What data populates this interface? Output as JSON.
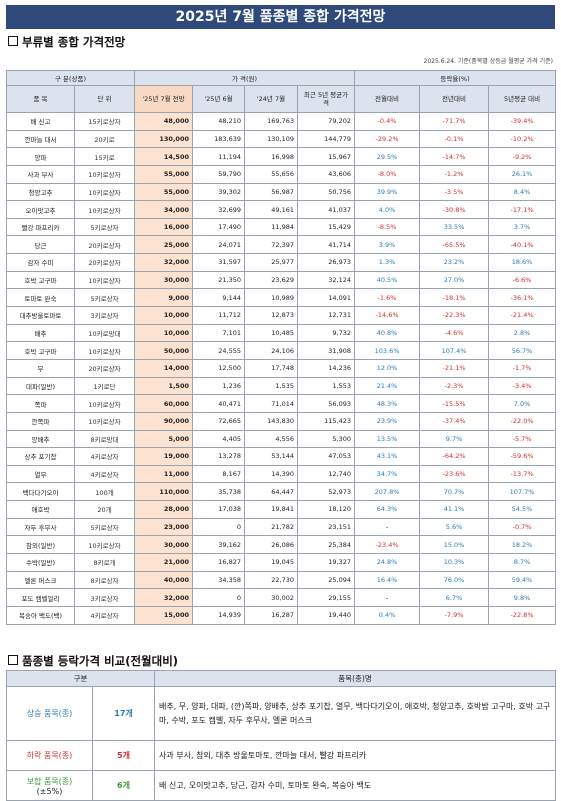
{
  "title": "2025년 7월 품종별 종합 가격전망",
  "section1_title": "부류별 종합 가격전망",
  "note": "2025.6.24. 기준(품목별 상등급 월평균 가격 기준)",
  "headers": {
    "group_item": "구 분(상품)",
    "group_price": "가 격(원)",
    "group_change": "등락율(%)",
    "item": "품 목",
    "unit": "단 위",
    "forecast": "'25년 7월 전망",
    "jun25": "'25년 6월",
    "jul24": "'24년 7월",
    "avg5": "최근 5년 평균가격",
    "mom": "전월대비",
    "yoy": "전년대비",
    "avg5_cmp": "5년평균 대비"
  },
  "rows": [
    {
      "item": "배 신고",
      "unit": "15키로상자",
      "forecast": "48,000",
      "jun": "48,210",
      "jul24": "169,763",
      "avg5": "79,202",
      "mom": "-0.4%",
      "yoy": "-71.7%",
      "avg": "-39.4%"
    },
    {
      "item": "깐마늘 대서",
      "unit": "20키로",
      "forecast": "130,000",
      "jun": "183,639",
      "jul24": "130,109",
      "avg5": "144,779",
      "mom": "-29.2%",
      "yoy": "-0.1%",
      "avg": "-10.2%"
    },
    {
      "item": "양파",
      "unit": "15키로",
      "forecast": "14,500",
      "jun": "11,194",
      "jul24": "16,998",
      "avg5": "15,967",
      "mom": "29.5%",
      "yoy": "-14.7%",
      "avg": "-9.2%"
    },
    {
      "item": "사과 부사",
      "unit": "10키로상자",
      "forecast": "55,000",
      "jun": "59,790",
      "jul24": "55,656",
      "avg5": "43,606",
      "mom": "-8.0%",
      "yoy": "-1.2%",
      "avg": "26.1%"
    },
    {
      "item": "청양고추",
      "unit": "10키로상자",
      "forecast": "55,000",
      "jun": "39,302",
      "jul24": "56,987",
      "avg5": "50,756",
      "mom": "39.9%",
      "yoy": "-3.5%",
      "avg": "8.4%"
    },
    {
      "item": "오이맛고추",
      "unit": "10키로상자",
      "forecast": "34,000",
      "jun": "32,699",
      "jul24": "49,161",
      "avg5": "41,037",
      "mom": "4.0%",
      "yoy": "-30.8%",
      "avg": "-17.1%"
    },
    {
      "item": "빨강 파프리카",
      "unit": "5키로상자",
      "forecast": "16,000",
      "jun": "17,490",
      "jul24": "11,984",
      "avg5": "15,429",
      "mom": "-8.5%",
      "yoy": "33.5%",
      "avg": "3.7%"
    },
    {
      "item": "당근",
      "unit": "20키로상자",
      "forecast": "25,000",
      "jun": "24,071",
      "jul24": "72,397",
      "avg5": "41,714",
      "mom": "3.9%",
      "yoy": "-65.5%",
      "avg": "-40.1%"
    },
    {
      "item": "감자 수미",
      "unit": "20키로상자",
      "forecast": "32,000",
      "jun": "31,597",
      "jul24": "25,977",
      "avg5": "26,973",
      "mom": "1.3%",
      "yoy": "23.2%",
      "avg": "18.6%"
    },
    {
      "item": "호박 고구마",
      "unit": "10키로상자",
      "forecast": "30,000",
      "jun": "21,350",
      "jul24": "23,629",
      "avg5": "32,124",
      "mom": "40.5%",
      "yoy": "27.0%",
      "avg": "-6.6%"
    },
    {
      "item": "토마토 완숙",
      "unit": "5키로상자",
      "forecast": "9,000",
      "jun": "9,144",
      "jul24": "10,989",
      "avg5": "14,091",
      "mom": "-1.6%",
      "yoy": "-18.1%",
      "avg": "-36.1%"
    },
    {
      "item": "대추방울토마토",
      "unit": "3키로상자",
      "forecast": "10,000",
      "jun": "11,712",
      "jul24": "12,873",
      "avg5": "12,731",
      "mom": "-14.6%",
      "yoy": "-22.3%",
      "avg": "-21.4%"
    },
    {
      "item": "배추",
      "unit": "10키로망대",
      "forecast": "10,000",
      "jun": "7,101",
      "jul24": "10,485",
      "avg5": "9,732",
      "mom": "40.8%",
      "yoy": "-4.6%",
      "avg": "2.8%"
    },
    {
      "item": "호박 고구마",
      "unit": "10키로상자",
      "forecast": "50,000",
      "jun": "24,555",
      "jul24": "24,106",
      "avg5": "31,908",
      "mom": "103.6%",
      "yoy": "107.4%",
      "avg": "56.7%"
    },
    {
      "item": "무",
      "unit": "20키로상자",
      "forecast": "14,000",
      "jun": "12,500",
      "jul24": "17,748",
      "avg5": "14,236",
      "mom": "12.0%",
      "yoy": "-21.1%",
      "avg": "-1.7%"
    },
    {
      "item": "대파(일반)",
      "unit": "1키로단",
      "forecast": "1,500",
      "jun": "1,236",
      "jul24": "1,535",
      "avg5": "1,553",
      "mom": "21.4%",
      "yoy": "-2.3%",
      "avg": "-3.4%"
    },
    {
      "item": "쪽파",
      "unit": "10키로상자",
      "forecast": "60,000",
      "jun": "40,471",
      "jul24": "71,014",
      "avg5": "56,093",
      "mom": "48.3%",
      "yoy": "-15.5%",
      "avg": "7.0%"
    },
    {
      "item": "깐쪽파",
      "unit": "10키로상자",
      "forecast": "90,000",
      "jun": "72,665",
      "jul24": "143,830",
      "avg5": "115,423",
      "mom": "23.9%",
      "yoy": "-37.4%",
      "avg": "-22.0%"
    },
    {
      "item": "양배추",
      "unit": "8키로망대",
      "forecast": "5,000",
      "jun": "4,405",
      "jul24": "4,556",
      "avg5": "5,300",
      "mom": "13.5%",
      "yoy": "9.7%",
      "avg": "-5.7%"
    },
    {
      "item": "상추 포기찹",
      "unit": "4키로상자",
      "forecast": "19,000",
      "jun": "13,278",
      "jul24": "53,144",
      "avg5": "47,053",
      "mom": "43.1%",
      "yoy": "-64.2%",
      "avg": "-59.6%"
    },
    {
      "item": "열무",
      "unit": "4키로상자",
      "forecast": "11,000",
      "jun": "8,167",
      "jul24": "14,390",
      "avg5": "12,740",
      "mom": "34.7%",
      "yoy": "-23.6%",
      "avg": "-13.7%"
    },
    {
      "item": "백다다기오이",
      "unit": "100개",
      "forecast": "110,000",
      "jun": "35,738",
      "jul24": "64,447",
      "avg5": "52,973",
      "mom": "207.8%",
      "yoy": "70.7%",
      "avg": "107.7%"
    },
    {
      "item": "애호박",
      "unit": "20개",
      "forecast": "28,000",
      "jun": "17,038",
      "jul24": "19,841",
      "avg5": "18,120",
      "mom": "64.3%",
      "yoy": "41.1%",
      "avg": "54.5%"
    },
    {
      "item": "자두 후무사",
      "unit": "5키로상자",
      "forecast": "23,000",
      "jun": "0",
      "jul24": "21,782",
      "avg5": "23,151",
      "mom": "-",
      "yoy": "5.6%",
      "avg": "-0.7%"
    },
    {
      "item": "참외(일반)",
      "unit": "10키로상자",
      "forecast": "30,000",
      "jun": "39,162",
      "jul24": "26,086",
      "avg5": "25,384",
      "mom": "-23.4%",
      "yoy": "15.0%",
      "avg": "18.2%"
    },
    {
      "item": "수박(일반)",
      "unit": "8키로개",
      "forecast": "21,000",
      "jun": "16,827",
      "jul24": "19,045",
      "avg5": "19,327",
      "mom": "24.8%",
      "yoy": "10.3%",
      "avg": "8.7%"
    },
    {
      "item": "멜론 머스크",
      "unit": "8키로상자",
      "forecast": "40,000",
      "jun": "34,358",
      "jul24": "22,730",
      "avg5": "25,094",
      "mom": "16.4%",
      "yoy": "76.0%",
      "avg": "59.4%"
    },
    {
      "item": "포도 캠벨얼리",
      "unit": "3키로상자",
      "forecast": "32,000",
      "jun": "0",
      "jul24": "30,002",
      "avg5": "29,155",
      "mom": "-",
      "yoy": "6.7%",
      "avg": "9.8%"
    },
    {
      "item": "복숭아 백도(백)",
      "unit": "4키로상자",
      "forecast": "15,000",
      "jun": "14,939",
      "jul24": "16,287",
      "avg5": "19,440",
      "mom": "0.4%",
      "yoy": "-7.9%",
      "avg": "-22.8%"
    }
  ],
  "section2_title": "품종별 등락가격 비교(전월대비)",
  "compare": {
    "h_category": "구분",
    "h_items": "품목(종)명",
    "rows": [
      {
        "label": "상승 품목(종)",
        "count": "17개",
        "items": "배추, 무, 양파, 대파, (깐)쪽파, 양배추, 상추 포기찹, 열무, 백다다기오이, 애호박, 청양고추, 호박밤 고구마, 호박 고구마, 수박, 포도 캠벨, 자두 후무사, 멜론 머스크"
      },
      {
        "label": "하락 품목(종)",
        "count": "5개",
        "items": "사과 부사, 참외, 대추 방울토마토, 깐마늘 대서, 빨강 파프리카"
      },
      {
        "label": "보합 품목(종)",
        "label2": "(±5%)",
        "count": "6개",
        "items": "배 신고, 오이맛고추, 당근, 감자 수미, 토마토 완숙, 복숭아 백도"
      }
    ]
  },
  "colors": {
    "title_bg": "#2f4a7a",
    "header_bg": "#dce3ee",
    "highlight": "#fbe2d1",
    "up": "#2e7bb4",
    "down": "#d23030",
    "flat": "#3a9a3a"
  }
}
